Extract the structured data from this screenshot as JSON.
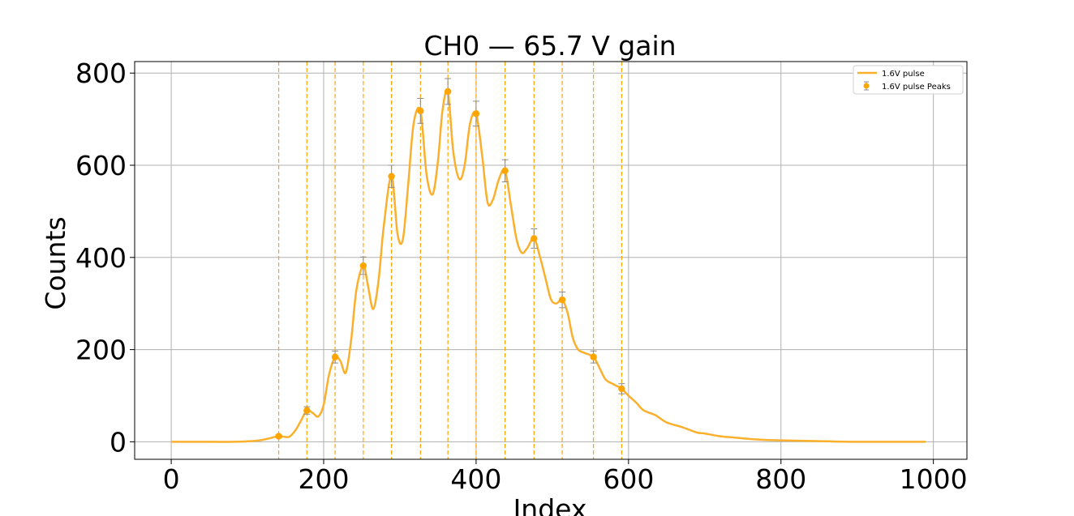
{
  "chart_data": {
    "type": "line",
    "title": "CH0 — 65.7 V gain",
    "xlabel": "Index",
    "ylabel": "Counts",
    "xlim": [
      -48,
      1044
    ],
    "ylim": [
      -38,
      825
    ],
    "xticks": [
      0,
      200,
      400,
      600,
      800,
      1000
    ],
    "yticks": [
      0,
      200,
      400,
      600,
      800
    ],
    "grid": true,
    "legend_position": "top-right",
    "colors": {
      "line": "#fbb02d",
      "peaks": "#ffa500",
      "errorbar": "#8c8c8c",
      "vlines": "#ffa500",
      "grid": "#b0b0b0"
    },
    "series": [
      {
        "name": "1.6V pulse",
        "type": "line",
        "x": [
          0,
          40,
          80,
          110,
          125,
          140,
          148,
          155,
          163,
          170,
          178,
          186,
          193,
          200,
          207,
          215,
          222,
          229,
          236,
          243,
          252,
          258,
          265,
          272,
          279,
          289,
          297,
          304,
          311,
          318,
          327,
          335,
          343,
          350,
          356,
          363,
          370,
          378,
          385,
          392,
          400,
          408,
          415,
          422,
          430,
          438,
          446,
          453,
          460,
          467,
          476,
          484,
          491,
          498,
          505,
          513,
          520,
          527,
          534,
          542,
          554,
          562,
          570,
          580,
          591,
          600,
          610,
          620,
          635,
          650,
          670,
          690,
          700,
          720,
          740,
          760,
          780,
          800,
          830,
          860,
          900,
          950,
          990
        ],
        "y": [
          0,
          0,
          0,
          2,
          6,
          12,
          11,
          11,
          25,
          45,
          68,
          62,
          55,
          80,
          145,
          184,
          175,
          150,
          220,
          330,
          382,
          340,
          288,
          350,
          470,
          576,
          450,
          440,
          560,
          690,
          718,
          580,
          537,
          610,
          720,
          760,
          630,
          570,
          600,
          690,
          712,
          620,
          520,
          525,
          570,
          588,
          510,
          440,
          410,
          420,
          441,
          400,
          355,
          310,
          300,
          308,
          280,
          225,
          200,
          193,
          184,
          160,
          135,
          125,
          115,
          100,
          85,
          68,
          58,
          42,
          32,
          20,
          18,
          12,
          9,
          6,
          4,
          3,
          2,
          1,
          0,
          0,
          0
        ]
      },
      {
        "name": "1.6V pulse Peaks",
        "type": "scatter",
        "x": [
          141,
          178,
          215,
          252,
          289,
          327,
          363,
          400,
          438,
          476,
          513,
          554,
          591
        ],
        "y": [
          12,
          68,
          184,
          382,
          576,
          718,
          760,
          712,
          588,
          441,
          308,
          184,
          115
        ],
        "yerr": [
          3,
          8,
          13,
          19,
          24,
          27,
          28,
          27,
          24,
          21,
          17,
          13,
          11
        ]
      }
    ],
    "vlines": [
      141,
      178,
      215,
      252,
      289,
      327,
      363,
      400,
      438,
      476,
      513,
      554,
      591
    ]
  }
}
